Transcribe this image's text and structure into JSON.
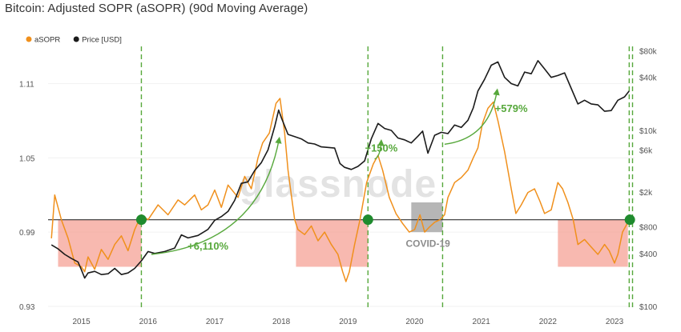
{
  "title": "Bitcoin: Adjusted SOPR (aSOPR) (90d Moving Average)",
  "watermark": "glassnode",
  "colors": {
    "asopr": "#f0901c",
    "price": "#1b1b1b",
    "annotation": "#57a83c",
    "shade_red": "#f5a296",
    "shade_gray": "#a9a9a9",
    "marker": "#1f8b2e",
    "axis_text": "#555555"
  },
  "chart_data": {
    "type": "line",
    "title": "Bitcoin: Adjusted SOPR (aSOPR) (90d Moving Average)",
    "legend": [
      {
        "name": "aSOPR",
        "color": "#f0901c"
      },
      {
        "name": "Price [USD]",
        "color": "#1b1b1b"
      }
    ],
    "legend_position": "top-left",
    "x_ticks": [
      "2015",
      "2016",
      "2017",
      "2018",
      "2019",
      "2020",
      "2021",
      "2022",
      "2023"
    ],
    "x_range": [
      2014.5,
      2023.3
    ],
    "y_left": {
      "ticks": [
        "0.93",
        "0.99",
        "1.05",
        "1.11"
      ],
      "range": [
        0.93,
        1.14
      ]
    },
    "y_right": {
      "scale": "log",
      "ticks": [
        "$100",
        "$400",
        "$800",
        "$2k",
        "$6k",
        "$10k",
        "$40k",
        "$80k"
      ],
      "range": [
        100,
        90000
      ]
    },
    "reference_line": {
      "axis": "left",
      "value": 1.0
    },
    "series": [
      {
        "name": "aSOPR",
        "axis": "left",
        "points": [
          [
            2014.55,
            0.985
          ],
          [
            2014.6,
            1.02
          ],
          [
            2014.7,
            1.0
          ],
          [
            2014.8,
            0.985
          ],
          [
            2014.9,
            0.965
          ],
          [
            2015.0,
            0.962
          ],
          [
            2015.05,
            0.958
          ],
          [
            2015.1,
            0.97
          ],
          [
            2015.2,
            0.96
          ],
          [
            2015.3,
            0.976
          ],
          [
            2015.4,
            0.968
          ],
          [
            2015.5,
            0.98
          ],
          [
            2015.6,
            0.987
          ],
          [
            2015.7,
            0.975
          ],
          [
            2015.8,
            0.992
          ],
          [
            2015.9,
            1.004
          ],
          [
            2016.0,
            1.0
          ],
          [
            2016.15,
            1.012
          ],
          [
            2016.3,
            1.004
          ],
          [
            2016.45,
            1.016
          ],
          [
            2016.55,
            1.012
          ],
          [
            2016.7,
            1.02
          ],
          [
            2016.8,
            1.008
          ],
          [
            2016.9,
            1.012
          ],
          [
            2017.0,
            1.024
          ],
          [
            2017.1,
            1.01
          ],
          [
            2017.2,
            1.028
          ],
          [
            2017.35,
            1.018
          ],
          [
            2017.45,
            1.035
          ],
          [
            2017.55,
            1.025
          ],
          [
            2017.65,
            1.05
          ],
          [
            2017.72,
            1.062
          ],
          [
            2017.82,
            1.07
          ],
          [
            2017.92,
            1.094
          ],
          [
            2017.98,
            1.098
          ],
          [
            2018.05,
            1.07
          ],
          [
            2018.1,
            1.04
          ],
          [
            2018.15,
            1.02
          ],
          [
            2018.2,
            1.0
          ],
          [
            2018.25,
            0.992
          ],
          [
            2018.35,
            0.988
          ],
          [
            2018.45,
            0.995
          ],
          [
            2018.55,
            0.983
          ],
          [
            2018.65,
            0.99
          ],
          [
            2018.75,
            0.98
          ],
          [
            2018.85,
            0.972
          ],
          [
            2018.92,
            0.958
          ],
          [
            2018.97,
            0.95
          ],
          [
            2019.02,
            0.958
          ],
          [
            2019.1,
            0.98
          ],
          [
            2019.18,
            1.0
          ],
          [
            2019.28,
            1.03
          ],
          [
            2019.38,
            1.045
          ],
          [
            2019.45,
            1.052
          ],
          [
            2019.52,
            1.04
          ],
          [
            2019.62,
            1.018
          ],
          [
            2019.72,
            1.005
          ],
          [
            2019.82,
            0.997
          ],
          [
            2019.92,
            0.99
          ],
          [
            2020.0,
            0.992
          ],
          [
            2020.08,
            1.004
          ],
          [
            2020.15,
            0.99
          ],
          [
            2020.22,
            0.994
          ],
          [
            2020.3,
            0.998
          ],
          [
            2020.38,
            1.0
          ],
          [
            2020.45,
            1.004
          ],
          [
            2020.5,
            1.018
          ],
          [
            2020.6,
            1.03
          ],
          [
            2020.7,
            1.034
          ],
          [
            2020.8,
            1.04
          ],
          [
            2020.88,
            1.05
          ],
          [
            2020.95,
            1.058
          ],
          [
            2021.02,
            1.078
          ],
          [
            2021.1,
            1.09
          ],
          [
            2021.18,
            1.095
          ],
          [
            2021.25,
            1.08
          ],
          [
            2021.35,
            1.055
          ],
          [
            2021.45,
            1.025
          ],
          [
            2021.52,
            1.005
          ],
          [
            2021.6,
            1.012
          ],
          [
            2021.7,
            1.022
          ],
          [
            2021.8,
            1.025
          ],
          [
            2021.88,
            1.015
          ],
          [
            2021.95,
            1.005
          ],
          [
            2022.05,
            1.008
          ],
          [
            2022.15,
            1.03
          ],
          [
            2022.22,
            1.025
          ],
          [
            2022.3,
            1.014
          ],
          [
            2022.38,
            1.0
          ],
          [
            2022.45,
            0.98
          ],
          [
            2022.55,
            0.984
          ],
          [
            2022.65,
            0.978
          ],
          [
            2022.75,
            0.972
          ],
          [
            2022.85,
            0.98
          ],
          [
            2022.92,
            0.975
          ],
          [
            2023.0,
            0.965
          ],
          [
            2023.05,
            0.972
          ],
          [
            2023.12,
            0.99
          ],
          [
            2023.2,
            0.998
          ]
        ]
      },
      {
        "name": "Price [USD]",
        "axis": "right",
        "points": [
          [
            2014.55,
            500
          ],
          [
            2014.65,
            450
          ],
          [
            2014.75,
            390
          ],
          [
            2014.85,
            350
          ],
          [
            2014.95,
            320
          ],
          [
            2015.0,
            260
          ],
          [
            2015.05,
            210
          ],
          [
            2015.1,
            240
          ],
          [
            2015.2,
            250
          ],
          [
            2015.3,
            230
          ],
          [
            2015.4,
            235
          ],
          [
            2015.5,
            270
          ],
          [
            2015.6,
            230
          ],
          [
            2015.7,
            240
          ],
          [
            2015.8,
            270
          ],
          [
            2015.9,
            330
          ],
          [
            2016.0,
            420
          ],
          [
            2016.1,
            400
          ],
          [
            2016.25,
            420
          ],
          [
            2016.4,
            460
          ],
          [
            2016.5,
            650
          ],
          [
            2016.6,
            600
          ],
          [
            2016.75,
            640
          ],
          [
            2016.9,
            750
          ],
          [
            2017.0,
            950
          ],
          [
            2017.1,
            1050
          ],
          [
            2017.2,
            1200
          ],
          [
            2017.3,
            1600
          ],
          [
            2017.4,
            2500
          ],
          [
            2017.5,
            2600
          ],
          [
            2017.6,
            3500
          ],
          [
            2017.7,
            4300
          ],
          [
            2017.8,
            6000
          ],
          [
            2017.9,
            11000
          ],
          [
            2017.96,
            17000
          ],
          [
            2018.0,
            14000
          ],
          [
            2018.1,
            9000
          ],
          [
            2018.2,
            8500
          ],
          [
            2018.3,
            8000
          ],
          [
            2018.4,
            7200
          ],
          [
            2018.5,
            7000
          ],
          [
            2018.6,
            6500
          ],
          [
            2018.7,
            6400
          ],
          [
            2018.8,
            6300
          ],
          [
            2018.88,
            4200
          ],
          [
            2018.95,
            3800
          ],
          [
            2019.05,
            3600
          ],
          [
            2019.15,
            3900
          ],
          [
            2019.25,
            4500
          ],
          [
            2019.35,
            8000
          ],
          [
            2019.45,
            12000
          ],
          [
            2019.55,
            10500
          ],
          [
            2019.65,
            10000
          ],
          [
            2019.75,
            8200
          ],
          [
            2019.85,
            7800
          ],
          [
            2019.95,
            7200
          ],
          [
            2020.05,
            8600
          ],
          [
            2020.12,
            9800
          ],
          [
            2020.2,
            5500
          ],
          [
            2020.3,
            8800
          ],
          [
            2020.4,
            9500
          ],
          [
            2020.5,
            9200
          ],
          [
            2020.6,
            11500
          ],
          [
            2020.7,
            10800
          ],
          [
            2020.8,
            13000
          ],
          [
            2020.88,
            18000
          ],
          [
            2020.95,
            28000
          ],
          [
            2021.05,
            38000
          ],
          [
            2021.15,
            55000
          ],
          [
            2021.25,
            60000
          ],
          [
            2021.35,
            40000
          ],
          [
            2021.45,
            34000
          ],
          [
            2021.55,
            32000
          ],
          [
            2021.65,
            46000
          ],
          [
            2021.75,
            44000
          ],
          [
            2021.85,
            62000
          ],
          [
            2021.95,
            50000
          ],
          [
            2022.05,
            40000
          ],
          [
            2022.15,
            42000
          ],
          [
            2022.25,
            45000
          ],
          [
            2022.35,
            30000
          ],
          [
            2022.45,
            20000
          ],
          [
            2022.55,
            22000
          ],
          [
            2022.65,
            20000
          ],
          [
            2022.75,
            19500
          ],
          [
            2022.85,
            16500
          ],
          [
            2022.95,
            16800
          ],
          [
            2023.05,
            22000
          ],
          [
            2023.15,
            24000
          ],
          [
            2023.22,
            28000
          ]
        ]
      }
    ],
    "shaded_regions": [
      {
        "type": "red",
        "x": [
          2014.65,
          2015.9
        ],
        "y": [
          0.962,
          1.0
        ]
      },
      {
        "type": "red",
        "x": [
          2018.22,
          2019.3
        ],
        "y": [
          0.962,
          1.0
        ]
      },
      {
        "type": "gray",
        "x": [
          2019.95,
          2020.42
        ],
        "y": [
          0.99,
          1.014
        ]
      },
      {
        "type": "red",
        "x": [
          2022.15,
          2023.2
        ],
        "y": [
          0.962,
          1.0
        ]
      }
    ],
    "vertical_markers": [
      2015.9,
      2019.3,
      2020.42,
      2023.22,
      2023.27
    ],
    "intersection_markers": [
      2015.9,
      2019.3,
      2023.23
    ],
    "annotations": [
      {
        "text": "+6,110%",
        "x": 2016.9,
        "y": 0.976
      },
      {
        "text": "+150%",
        "x": 2019.5,
        "y": 1.055
      },
      {
        "text": "+579%",
        "x": 2021.45,
        "y": 1.087
      },
      {
        "text": "COVID-19",
        "x": 2020.2,
        "y": 0.978
      }
    ],
    "arrows": [
      {
        "from": [
          2016.05,
          0.972
        ],
        "to": [
          2017.97,
          1.066
        ]
      },
      {
        "from": [
          2019.4,
          1.049
        ],
        "to": [
          2019.5,
          1.064
        ]
      },
      {
        "from": [
          2020.45,
          1.061
        ],
        "to": [
          2021.24,
          1.105
        ]
      }
    ]
  }
}
